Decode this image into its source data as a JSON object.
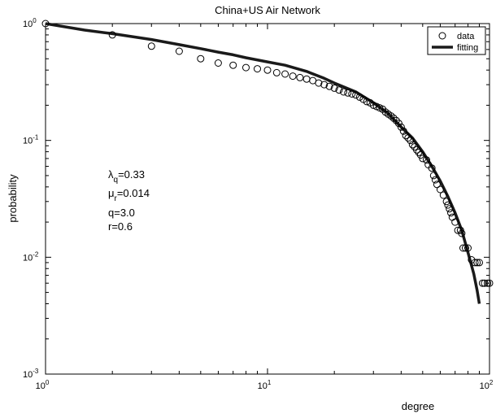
{
  "chart_data": {
    "type": "scatter",
    "title": "China+US Air Network",
    "xlabel": "degree",
    "ylabel": "probability",
    "xscale": "log",
    "yscale": "log",
    "xlim": [
      1,
      100
    ],
    "ylim": [
      0.001,
      1
    ],
    "grid": false,
    "legend_position": "top-right",
    "x_ticks": [
      {
        "value": 1,
        "base": "10",
        "exp": "0"
      },
      {
        "value": 10,
        "base": "10",
        "exp": "1"
      },
      {
        "value": 100,
        "base": "10",
        "exp": "2"
      }
    ],
    "y_ticks": [
      {
        "value": 0.001,
        "base": "10",
        "exp": "-3"
      },
      {
        "value": 0.01,
        "base": "10",
        "exp": "-2"
      },
      {
        "value": 0.1,
        "base": "10",
        "exp": "-1"
      },
      {
        "value": 1,
        "base": "10",
        "exp": "0"
      }
    ],
    "annotations": [
      {
        "sym": "λ",
        "sub": "q",
        "rest": "=0.33"
      },
      {
        "sym": "μ",
        "sub": "r",
        "rest": "=0.014"
      },
      {
        "sym": "",
        "sub": "",
        "rest": "q=3.0"
      },
      {
        "sym": "",
        "sub": "",
        "rest": "r=0.6"
      }
    ],
    "series": [
      {
        "name": "data",
        "marker": "open-circle",
        "x": [
          1,
          2,
          3,
          4,
          5,
          6,
          7,
          8,
          9,
          10,
          11,
          12,
          13,
          14,
          15,
          16,
          17,
          18,
          19,
          20,
          21,
          22,
          23,
          24,
          25,
          26,
          27,
          28,
          29,
          30,
          31,
          32,
          33,
          34,
          35,
          36,
          37,
          38,
          39,
          40,
          41,
          42,
          43,
          44,
          45,
          46,
          47,
          48,
          49,
          50,
          52,
          53,
          55,
          56,
          57,
          58,
          60,
          62,
          64,
          65,
          66,
          67,
          68,
          70,
          72,
          74,
          75,
          76,
          78,
          80,
          83,
          86,
          88,
          90,
          93,
          95,
          98,
          100
        ],
        "y": [
          1.0,
          0.8,
          0.64,
          0.58,
          0.5,
          0.46,
          0.44,
          0.42,
          0.41,
          0.4,
          0.38,
          0.37,
          0.355,
          0.345,
          0.335,
          0.325,
          0.31,
          0.3,
          0.29,
          0.28,
          0.27,
          0.26,
          0.255,
          0.25,
          0.245,
          0.235,
          0.225,
          0.215,
          0.21,
          0.2,
          0.195,
          0.19,
          0.185,
          0.175,
          0.168,
          0.162,
          0.155,
          0.148,
          0.14,
          0.13,
          0.12,
          0.11,
          0.105,
          0.1,
          0.092,
          0.088,
          0.083,
          0.079,
          0.075,
          0.07,
          0.068,
          0.062,
          0.058,
          0.05,
          0.046,
          0.042,
          0.038,
          0.034,
          0.03,
          0.028,
          0.026,
          0.024,
          0.022,
          0.02,
          0.017,
          0.017,
          0.016,
          0.012,
          0.012,
          0.012,
          0.0095,
          0.009,
          0.009,
          0.009,
          0.006,
          0.006,
          0.006,
          0.006
        ]
      },
      {
        "name": "fitting",
        "line": "solid",
        "x": [
          1,
          1.5,
          2,
          3,
          4,
          5,
          6,
          7,
          8,
          10,
          12,
          15,
          18,
          20,
          25,
          30,
          35,
          40,
          45,
          50,
          55,
          60,
          65,
          70,
          75,
          80,
          85,
          88,
          90
        ],
        "y": [
          1.0,
          0.88,
          0.82,
          0.73,
          0.66,
          0.61,
          0.57,
          0.54,
          0.51,
          0.47,
          0.44,
          0.39,
          0.34,
          0.31,
          0.26,
          0.21,
          0.17,
          0.13,
          0.105,
          0.08,
          0.06,
          0.045,
          0.033,
          0.024,
          0.017,
          0.011,
          0.0072,
          0.0052,
          0.004
        ]
      }
    ]
  }
}
